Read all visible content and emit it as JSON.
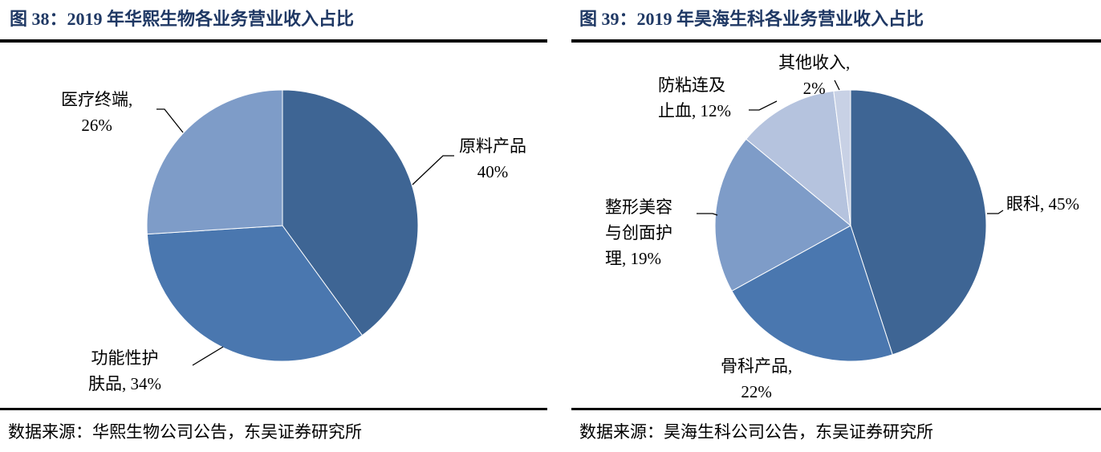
{
  "chart_data": [
    {
      "type": "pie",
      "title": "图 38：2019 年华熙生物各业务营业收入占比",
      "source": "数据来源：华熙生物公司公告，东吴证券研究所",
      "slices": [
        {
          "label": "原料产品",
          "value": 40,
          "display": "40%",
          "color": "#3E6594"
        },
        {
          "label": "功能性护肤品",
          "value": 34,
          "display": "34%",
          "color": "#4A77AF"
        },
        {
          "label": "医疗终端",
          "value": 26,
          "display": "26%",
          "color": "#7E9CC8"
        }
      ]
    },
    {
      "type": "pie",
      "title": "图 39：2019 年昊海生科各业务营业收入占比",
      "source": "数据来源：昊海生科公司公告，东吴证券研究所",
      "slices": [
        {
          "label": "眼科",
          "value": 45,
          "display": "45%",
          "color": "#3E6594"
        },
        {
          "label": "骨科产品",
          "value": 22,
          "display": "22%",
          "color": "#4A77AF"
        },
        {
          "label": "整形美容与创面护理",
          "value": 19,
          "display": "19%",
          "color": "#7E9CC8"
        },
        {
          "label": "防粘连及止血",
          "value": 12,
          "display": "12%",
          "color": "#B5C3DE"
        },
        {
          "label": "其他收入",
          "value": 2,
          "display": "2%",
          "color": "#C8D1E5"
        }
      ]
    }
  ],
  "labels": {
    "c1": [
      "原料产品\n40%",
      "功能性护\n肤品, 34%",
      "医疗终端,\n26%"
    ],
    "c2": [
      "眼科, 45%",
      "骨科产品,\n22%",
      "整形美容\n与创面护\n理, 19%",
      "防粘连及\n止血, 12%",
      "其他收入,\n2%"
    ]
  }
}
